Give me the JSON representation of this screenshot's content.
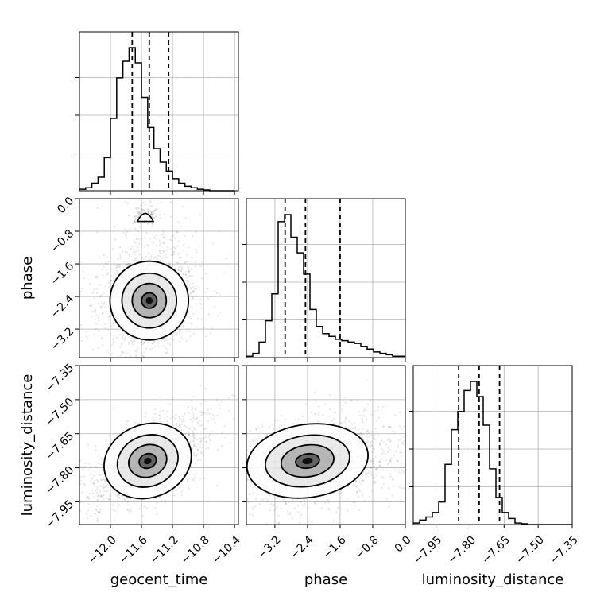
{
  "chart_data": {
    "type": "corner",
    "parameters": [
      "geocent_time",
      "phase",
      "luminosity_distance"
    ],
    "xlabels": [
      "geocent_time",
      "phase",
      "luminosity_distance"
    ],
    "ylabels": [
      "phase",
      "luminosity_distance"
    ],
    "grid": true,
    "ranges": {
      "geocent_time": [
        -12.4,
        -10.35
      ],
      "phase": [
        -3.9,
        0.0
      ],
      "luminosity_distance": [
        -8.05,
        -7.35
      ]
    },
    "ticks": {
      "geocent_time": {
        "values": [
          -12.0,
          -11.6,
          -11.2,
          -10.8,
          -10.4
        ],
        "labels": [
          "−12.0",
          "−11.6",
          "−11.2",
          "−10.8",
          "−10.4"
        ]
      },
      "phase": {
        "values": [
          -3.2,
          -2.4,
          -1.6,
          -0.8,
          0.0
        ],
        "labels": [
          "−3.2",
          "−2.4",
          "−1.6",
          "−0.8",
          "0.0"
        ]
      },
      "luminosity_distance": {
        "values": [
          -7.95,
          -7.8,
          -7.65,
          -7.5,
          -7.35
        ],
        "labels": [
          "−7.95",
          "−7.80",
          "−7.65",
          "−7.50",
          "−7.35"
        ]
      }
    },
    "quantiles": {
      "geocent_time": [
        -11.72,
        -11.5,
        -11.25
      ],
      "phase": [
        -2.95,
        -2.45,
        -1.6
      ],
      "luminosity_distance": [
        -7.85,
        -7.76,
        -7.67
      ]
    },
    "histograms": {
      "geocent_time": {
        "edges_range": [
          -12.4,
          -10.4
        ],
        "bins": 25,
        "counts": [
          1,
          2,
          5,
          9,
          22,
          48,
          75,
          86,
          95,
          85,
          62,
          42,
          28,
          19,
          13,
          8,
          5,
          3,
          2,
          1,
          0.5,
          0,
          0,
          0,
          0
        ]
      },
      "phase": {
        "edges_range": [
          -3.9,
          0.0
        ],
        "bins": 25,
        "counts": [
          1,
          3,
          11,
          26,
          45,
          96,
          101,
          85,
          74,
          59,
          34,
          22,
          17,
          15,
          13,
          12,
          11,
          10,
          8,
          6,
          4,
          3,
          2,
          1,
          1
        ]
      },
      "luminosity_distance": {
        "edges_range": [
          -8.05,
          -7.35
        ],
        "bins": 25,
        "counts": [
          1,
          3,
          5,
          8,
          15,
          40,
          63,
          75,
          89,
          95,
          85,
          66,
          37,
          18,
          8,
          4,
          1,
          0.5,
          0,
          0,
          0,
          0,
          0,
          0,
          0
        ]
      }
    },
    "joint": {
      "phase_vs_geocent_time": {
        "mean": [
          -11.5,
          -2.5
        ],
        "sd": [
          0.22,
          0.42
        ],
        "corr": 0.1,
        "secondary_mode": [
          -11.55,
          -0.4
        ]
      },
      "luminosity_distance_vs_geocent_time": {
        "mean": [
          -11.52,
          -7.77
        ],
        "sd": [
          0.25,
          0.07
        ],
        "corr": 0.6
      },
      "luminosity_distance_vs_phase": {
        "mean": [
          -2.4,
          -7.77
        ],
        "sd": [
          0.65,
          0.07
        ],
        "corr": 0.3
      }
    },
    "colors": {
      "line": "#000000",
      "grid": "#b0b0b0",
      "points": "#000000",
      "density": "#000000"
    }
  }
}
